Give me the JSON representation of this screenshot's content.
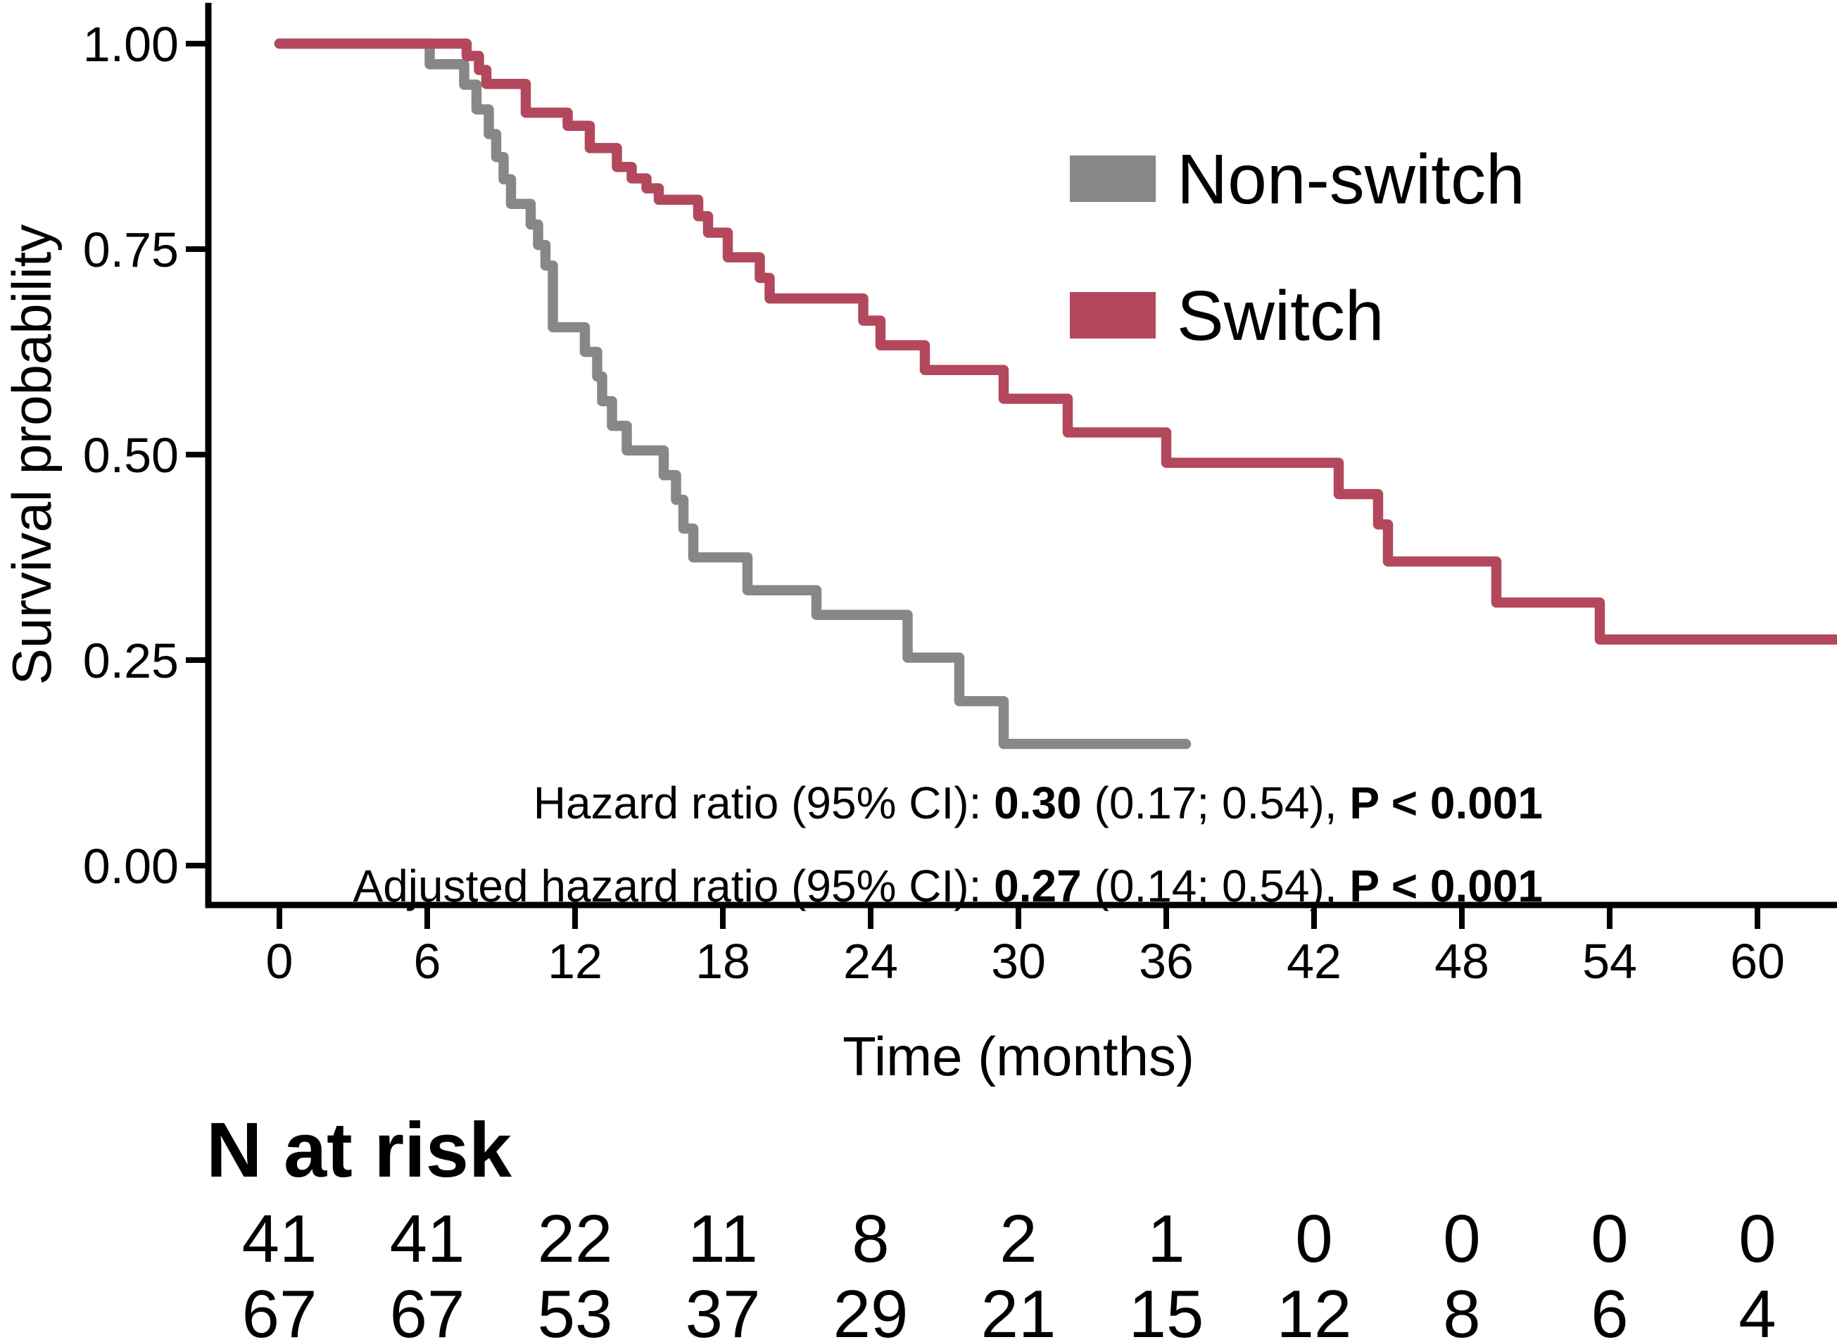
{
  "chart_data": {
    "type": "line",
    "subtype": "kaplan-meier-step",
    "title": "",
    "xlabel": "Time (months)",
    "ylabel": "Survival probability",
    "xlim": [
      0,
      63.2
    ],
    "ylim": [
      0.0,
      1.0
    ],
    "grid": false,
    "legend_position": "upper-right-inside",
    "x_ticks": [
      0,
      6,
      12,
      18,
      24,
      30,
      36,
      42,
      48,
      54,
      60
    ],
    "y_ticks": [
      {
        "value": 1.0,
        "label": "1.00"
      },
      {
        "value": 0.75,
        "label": "0.75"
      },
      {
        "value": 0.5,
        "label": "0.50"
      },
      {
        "value": 0.25,
        "label": "0.25"
      },
      {
        "value": 0.0,
        "label": "0.00"
      }
    ],
    "series": [
      {
        "name": "Non-switch",
        "color": "#878787",
        "steps": [
          [
            0,
            1.0
          ],
          [
            6.1,
            0.975
          ],
          [
            7.5,
            0.95
          ],
          [
            8.0,
            0.92
          ],
          [
            8.5,
            0.89
          ],
          [
            8.8,
            0.862
          ],
          [
            9.1,
            0.835
          ],
          [
            9.4,
            0.805
          ],
          [
            10.2,
            0.78
          ],
          [
            10.5,
            0.755
          ],
          [
            10.8,
            0.73
          ],
          [
            11.1,
            0.655
          ],
          [
            12.4,
            0.625
          ],
          [
            12.9,
            0.595
          ],
          [
            13.1,
            0.565
          ],
          [
            13.5,
            0.535
          ],
          [
            14.1,
            0.505
          ],
          [
            15.6,
            0.475
          ],
          [
            16.1,
            0.445
          ],
          [
            16.4,
            0.41
          ],
          [
            16.8,
            0.375
          ],
          [
            19.0,
            0.335
          ],
          [
            21.8,
            0.305
          ],
          [
            25.5,
            0.253
          ],
          [
            27.6,
            0.2
          ],
          [
            29.4,
            0.148
          ]
        ],
        "end_time": 36.8,
        "extend_to_edge": false
      },
      {
        "name": "Switch",
        "color": "#B3485C",
        "steps": [
          [
            0,
            1.0
          ],
          [
            7.6,
            0.985
          ],
          [
            8.1,
            0.968
          ],
          [
            8.4,
            0.951
          ],
          [
            10.0,
            0.916
          ],
          [
            11.7,
            0.9
          ],
          [
            12.6,
            0.873
          ],
          [
            13.7,
            0.85
          ],
          [
            14.3,
            0.836
          ],
          [
            14.9,
            0.824
          ],
          [
            15.4,
            0.81
          ],
          [
            17.0,
            0.79
          ],
          [
            17.4,
            0.77
          ],
          [
            18.2,
            0.74
          ],
          [
            19.5,
            0.715
          ],
          [
            19.9,
            0.69
          ],
          [
            23.7,
            0.663
          ],
          [
            24.4,
            0.633
          ],
          [
            26.2,
            0.603
          ],
          [
            29.4,
            0.568
          ],
          [
            32.0,
            0.527
          ],
          [
            36.0,
            0.49
          ],
          [
            43.0,
            0.452
          ],
          [
            44.6,
            0.415
          ],
          [
            45.0,
            0.37
          ],
          [
            49.4,
            0.32
          ],
          [
            53.6,
            0.275
          ]
        ],
        "end_time": 63.2,
        "extend_to_edge": true
      }
    ]
  },
  "legend": {
    "items": [
      {
        "label": "Non-switch",
        "color": "#878787"
      },
      {
        "label": "Switch",
        "color": "#B3485C"
      }
    ]
  },
  "annotations": {
    "line1": {
      "parts": [
        {
          "text": "Hazard ratio (95% CI): ",
          "bold": false
        },
        {
          "text": "0.30",
          "bold": true
        },
        {
          "text": " (0.17; 0.54), ",
          "bold": false
        },
        {
          "text": "P < 0.001",
          "bold": true
        }
      ]
    },
    "line2": {
      "parts": [
        {
          "text": "Adjusted hazard ratio (95% CI): ",
          "bold": false
        },
        {
          "text": "0.27",
          "bold": true
        },
        {
          "text": " (0.14; 0.54), ",
          "bold": false
        },
        {
          "text": "P < 0.001",
          "bold": true
        }
      ]
    }
  },
  "risk_table": {
    "title": "N at risk",
    "times": [
      0,
      6,
      12,
      18,
      24,
      30,
      36,
      42,
      48,
      54,
      60
    ],
    "rows": [
      {
        "name": "Non-switch",
        "color": "#8C8C8C",
        "values": [
          "41",
          "41",
          "22",
          "11",
          "8",
          "2",
          "1",
          "0",
          "0",
          "0",
          "0"
        ]
      },
      {
        "name": "Switch",
        "color": "#B3485C",
        "values": [
          "67",
          "67",
          "53",
          "37",
          "29",
          "21",
          "15",
          "12",
          "8",
          "6",
          "4"
        ]
      }
    ]
  }
}
